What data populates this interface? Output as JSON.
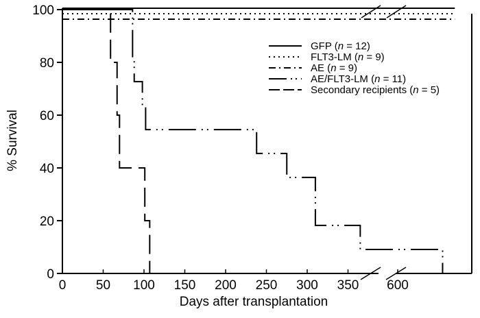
{
  "chart_data": {
    "type": "line",
    "subtype": "kaplan-meier step survival curves",
    "xlabel": "Days after transplantation",
    "ylabel": "% Survival",
    "xlim": [
      0,
      670
    ],
    "x_axis_break": [
      375,
      590
    ],
    "ylim": [
      0,
      100
    ],
    "xticks": [
      0,
      50,
      100,
      150,
      200,
      250,
      300,
      350,
      600
    ],
    "yticks": [
      0,
      20,
      40,
      60,
      80,
      100
    ],
    "grid": false,
    "legend_placement": "top-right",
    "series": [
      {
        "name": "GFP",
        "n": 12,
        "style": "solid",
        "x": [
          0,
          670
        ],
        "y": [
          100,
          100
        ]
      },
      {
        "name": "FLT3-LM",
        "n": 9,
        "style": "dotted",
        "x": [
          0,
          670
        ],
        "y": [
          100,
          100
        ]
      },
      {
        "name": "AE",
        "n": 9,
        "style": "dash-dot",
        "x": [
          0,
          670
        ],
        "y": [
          100,
          100
        ]
      },
      {
        "name": "AE/FLT3-LM",
        "n": 11,
        "style": "long-dash-double-dot",
        "x": [
          0,
          86,
          88,
          98,
          102,
          238,
          275,
          310,
          365,
          655,
          670
        ],
        "y": [
          100,
          81.8,
          72.7,
          63.6,
          54.5,
          45.5,
          36.4,
          18.2,
          9.1,
          0,
          0
        ]
      },
      {
        "name": "Secondary recipients",
        "n": 5,
        "style": "long-dash",
        "x": [
          0,
          59,
          67,
          70,
          101,
          107
        ],
        "y": [
          100,
          80,
          60,
          40,
          20,
          0
        ]
      }
    ]
  }
}
